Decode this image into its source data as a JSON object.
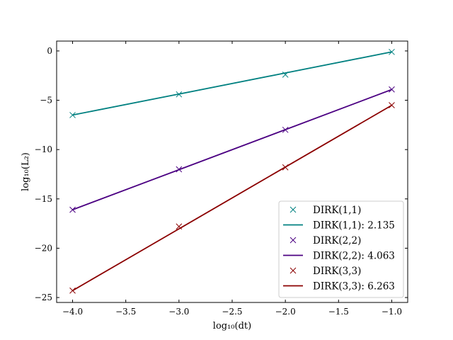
{
  "chart_data": {
    "type": "line",
    "title": "",
    "xlabel": "log₁₀(dt)",
    "ylabel": "log₁₀(L₂)",
    "xlim": [
      -4.15,
      -0.85
    ],
    "ylim": [
      -25.5,
      1.0
    ],
    "xticks": [
      -4.0,
      -3.5,
      -3.0,
      -2.5,
      -2.0,
      -1.5,
      -1.0
    ],
    "xtick_labels": [
      "−4.0",
      "−3.5",
      "−3.0",
      "−2.5",
      "−2.0",
      "−1.5",
      "−1.0"
    ],
    "yticks": [
      0,
      -5,
      -10,
      -15,
      -20,
      -25
    ],
    "ytick_labels": [
      "0",
      "−5",
      "−10",
      "−15",
      "−20",
      "−25"
    ],
    "grid": false,
    "legend_position": "bottom-right",
    "x": [
      -4.0,
      -3.0,
      -2.0,
      -1.0
    ],
    "series": [
      {
        "name": "DIRK(1,1)",
        "color": "#008080",
        "markers": [
          -6.5,
          -4.4,
          -2.4,
          -0.1
        ],
        "fit_label": "DIRK(1,1): 2.135",
        "fit": [
          -6.5,
          -4.37,
          -2.23,
          -0.1
        ]
      },
      {
        "name": "DIRK(2,2)",
        "color": "#4b0082",
        "markers": [
          -16.1,
          -12.0,
          -8.0,
          -3.9
        ],
        "fit_label": "DIRK(2,2): 4.063",
        "fit": [
          -16.1,
          -12.04,
          -7.98,
          -3.91
        ]
      },
      {
        "name": "DIRK(3,3)",
        "color": "#8b0000",
        "markers": [
          -24.3,
          -17.8,
          -11.8,
          -5.5
        ],
        "fit_label": "DIRK(3,3): 6.263",
        "fit": [
          -24.3,
          -18.04,
          -11.77,
          -5.51
        ]
      }
    ]
  }
}
